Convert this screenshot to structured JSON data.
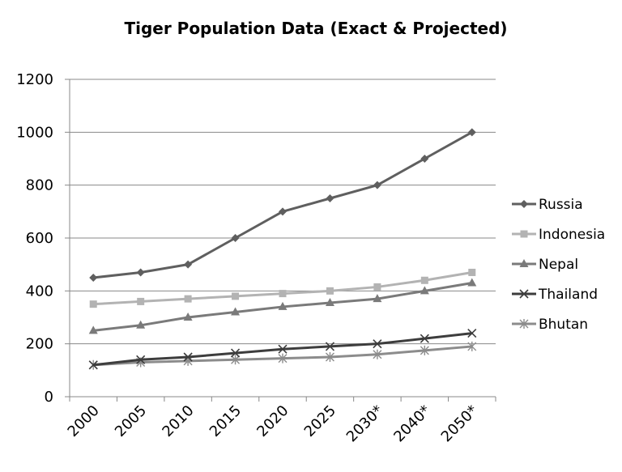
{
  "chart_data": {
    "type": "line",
    "title": "Tiger Population Data (Exact & Projected)",
    "xlabel": "",
    "ylabel": "",
    "categories": [
      "2000",
      "2005",
      "2010",
      "2015",
      "2020",
      "2025",
      "2030*",
      "2040*",
      "2050*"
    ],
    "ylim": [
      0,
      1200
    ],
    "yticks": [
      "0",
      "200",
      "400",
      "600",
      "800",
      "1000",
      "1200"
    ],
    "grid": true,
    "legend": "right",
    "series": [
      {
        "name": "Russia",
        "values": [
          450,
          470,
          500,
          600,
          700,
          750,
          800,
          900,
          1000
        ],
        "color": "#5f5f5f",
        "marker": "diamond"
      },
      {
        "name": "Indonesia",
        "values": [
          350,
          360,
          370,
          380,
          390,
          400,
          415,
          440,
          470
        ],
        "color": "#b3b3b3",
        "marker": "square"
      },
      {
        "name": "Nepal",
        "values": [
          250,
          270,
          300,
          320,
          340,
          355,
          370,
          400,
          430
        ],
        "color": "#7a7a7a",
        "marker": "triangle"
      },
      {
        "name": "Thailand",
        "values": [
          120,
          140,
          150,
          165,
          180,
          190,
          200,
          220,
          240
        ],
        "color": "#3d3d3d",
        "marker": "x"
      },
      {
        "name": "Bhutan",
        "values": [
          120,
          130,
          135,
          140,
          145,
          150,
          160,
          175,
          190
        ],
        "color": "#8c8c8c",
        "marker": "star"
      }
    ]
  }
}
